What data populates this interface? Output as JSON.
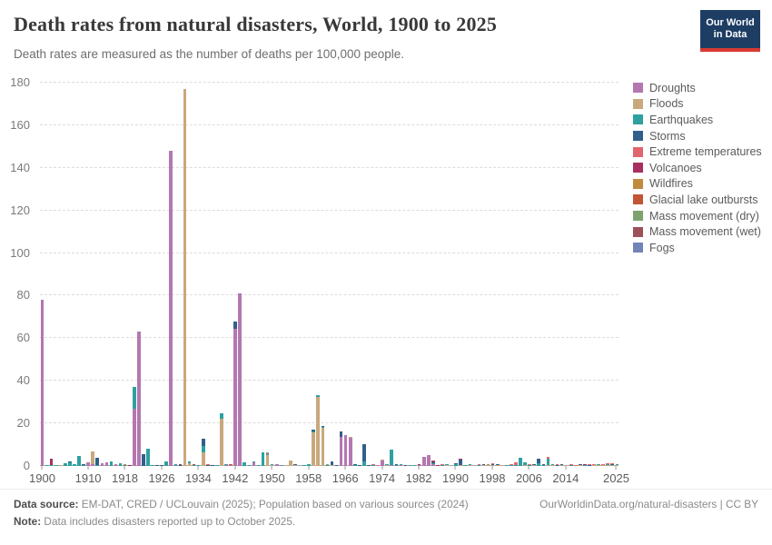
{
  "header": {
    "title": "Death rates from natural disasters, World, 1900 to 2025",
    "subtitle": "Death rates are measured as the number of deaths per 100,000 people.",
    "logo_line1": "Our World",
    "logo_line2": "in Data"
  },
  "footer": {
    "source_label": "Data source:",
    "source_text": " EM-DAT, CRED / UCLouvain (2025); Population based on various sources (2024)",
    "link_text": "OurWorldinData.org/natural-disasters | CC BY",
    "note_label": "Note:",
    "note_text": " Data includes disasters reported up to October 2025."
  },
  "chart_data": {
    "type": "bar",
    "stacked": true,
    "title": "Death rates from natural disasters, World, 1900 to 2025",
    "ylabel": "deaths per 100,000 people",
    "x_start": 1900,
    "x_end": 2025,
    "ylim": [
      0,
      180
    ],
    "yticks": [
      0,
      20,
      40,
      60,
      80,
      100,
      120,
      140,
      160,
      180
    ],
    "xticks": [
      1900,
      1910,
      1918,
      1926,
      1934,
      1942,
      1950,
      1958,
      1966,
      1974,
      1982,
      1990,
      1998,
      2006,
      2014,
      2025
    ],
    "grid": "dashed-horizontal",
    "legend_position": "right",
    "stack_order": "last series at bottom, first series (Droughts) on top",
    "series": [
      {
        "name": "Droughts",
        "color": "#b477b0",
        "values": {
          "1900": 78,
          "1910": 1.5,
          "1911": 1.0,
          "1913": 1.2,
          "1914": 1.7,
          "1916": 0.7,
          "1920": 27,
          "1921": 63,
          "1928": 148,
          "1940": 0.6,
          "1941": 0.5,
          "1942": 64.6,
          "1943": 81,
          "1946": 1.9,
          "1951": 0.7,
          "1965": 13.7,
          "1966": 14.5,
          "1967": 13.4,
          "1973": 0.6,
          "1974": 2.4,
          "1976": 0.3,
          "1978": 0.3,
          "1982": 0.4,
          "1983": 4.3,
          "1984": 5.3,
          "1985": 1.0
        }
      },
      {
        "name": "Floods",
        "color": "#c9a87c",
        "values": {
          "1904": 0.1,
          "1911": 6.0,
          "1931": 177,
          "1932": 1.1,
          "1935": 6.3,
          "1939": 22.3,
          "1949": 5.0,
          "1950": 0.5,
          "1953": 0.4,
          "1954": 2.4,
          "1955": 0.2,
          "1959": 16.0,
          "1960": 32.5,
          "1961": 18.0,
          "1963": 0.3,
          "1967": 0.3,
          "1974": 0.4,
          "1975": 0.4,
          "1988": 0.2,
          "1991": 0.2,
          "1993": 0.2,
          "1996": 0.2,
          "1997": 0.2,
          "1998": 0.4,
          "1999": 0.5,
          "2000": 0.15,
          "2005": 0.15,
          "2007": 0.1,
          "2010": 0.1,
          "2011": 0.1,
          "2013": 0.1,
          "2014": 0.1,
          "2017": 0.1,
          "2020": 0.1,
          "2021": 0.1,
          "2022": 0.1,
          "2023": 0.15,
          "2024": 0.1,
          "2025": 0.05
        }
      },
      {
        "name": "Earthquakes",
        "color": "#2ea0a0",
        "values": {
          "1901": 0.2,
          "1902": 0.6,
          "1903": 0.4,
          "1905": 1.2,
          "1906": 1.6,
          "1907": 0.9,
          "1908": 4.7,
          "1909": 0.3,
          "1912": 0.3,
          "1915": 2.0,
          "1917": 1.2,
          "1918": 0.4,
          "1920": 10.0,
          "1923": 8.0,
          "1924": 0.3,
          "1927": 2.2,
          "1929": 0.8,
          "1932": 0.9,
          "1933": 0.6,
          "1934": 0.5,
          "1935": 3.2,
          "1938": 0.4,
          "1939": 2.5,
          "1940": 0.3,
          "1944": 1.5,
          "1945": 0.5,
          "1946": 0.3,
          "1947": 0.4,
          "1948": 6.2,
          "1949": 0.5,
          "1950": 0.5,
          "1957": 0.5,
          "1958": 0.7,
          "1959": 0.3,
          "1960": 0.7,
          "1961": 0.5,
          "1962": 0.4,
          "1968": 0.3,
          "1970": 2.0,
          "1972": 0.4,
          "1975": 0.3,
          "1976": 7.3,
          "1977": 0.2,
          "1978": 0.4,
          "1980": 0.3,
          "1981": 0.2,
          "1985": 0.2,
          "1987": 0.6,
          "1988": 0.6,
          "1990": 0.9,
          "1992": 0.2,
          "1993": 0.2,
          "1995": 0.2,
          "2001": 0.4,
          "2002": 0.2,
          "2003": 0.4,
          "2004": 3.7,
          "2005": 1.2,
          "2006": 0.2,
          "2008": 1.3,
          "2009": 0.1,
          "2010": 3.2,
          "2011": 0.3,
          "2015": 0.15,
          "2018": 0.1,
          "2021": 0.05,
          "2023": 0.7,
          "2025": 0.05
        }
      },
      {
        "name": "Storms",
        "color": "#30608b",
        "values": {
          "1906": 0.6,
          "1909": 0.2,
          "1912": 3.4,
          "1922": 5.5,
          "1925": 0.3,
          "1926": 0.4,
          "1930": 0.3,
          "1935": 3.4,
          "1936": 0.6,
          "1937": 0.4,
          "1942": 3.4,
          "1955": 0.3,
          "1958": 0.2,
          "1959": 0.6,
          "1961": 0.3,
          "1963": 1.8,
          "1964": 0.2,
          "1965": 2.6,
          "1968": 0.4,
          "1969": 0.3,
          "1970": 8.4,
          "1971": 0.6,
          "1977": 0.5,
          "1979": 0.2,
          "1985": 0.3,
          "1990": 0.1,
          "1991": 2.6,
          "1996": 0.1,
          "1998": 0.4,
          "1999": 0.15,
          "2004": 0.1,
          "2005": 0.1,
          "2007": 0.15,
          "2008": 2.1,
          "2009": 0.1,
          "2012": 0.1,
          "2013": 0.1,
          "2017": 0.1,
          "2019": 0.1,
          "2024": 0.05
        }
      },
      {
        "name": "Extreme temperatures",
        "color": "#e2656e",
        "values": {
          "1936": 0.1,
          "1949": 0.2,
          "1972": 0.2,
          "1987": 0.1,
          "1995": 0.1,
          "1998": 0.3,
          "2002": 0.1,
          "2003": 1.1,
          "2006": 0.1,
          "2010": 0.8,
          "2012": 0.05,
          "2013": 0.1,
          "2015": 0.1,
          "2016": 0.1,
          "2019": 0.1,
          "2020": 0.1,
          "2021": 0.15,
          "2022": 0.55,
          "2023": 0.2,
          "2024": 0.5,
          "2025": 0.1
        }
      },
      {
        "name": "Volcanoes",
        "color": "#a92f62",
        "values": {
          "1902": 3.0,
          "1919": 0.3,
          "1930": 0.1,
          "1982": 0.2,
          "1985": 0.5,
          "1986": 0.1,
          "1991": 0.1,
          "2018": 0.05
        }
      },
      {
        "name": "Wildfires",
        "color": "#bf8b3f",
        "values": {
          "1918": 0.1,
          "1997": 0.05
        }
      },
      {
        "name": "Glacial lake outbursts",
        "color": "#c35434",
        "values": {
          "1941": 0.25
        }
      },
      {
        "name": "Mass movement (dry)",
        "color": "#7da470",
        "values": {
          "1949": 0.5,
          "1962": 0.15
        }
      },
      {
        "name": "Mass movement (wet)",
        "color": "#9e5058",
        "values": {
          "1933": 0.1,
          "1985": 0.1,
          "2017": 0.05
        }
      },
      {
        "name": "Fogs",
        "color": "#7184b8",
        "values": {
          "1952": 0.15
        }
      }
    ]
  }
}
